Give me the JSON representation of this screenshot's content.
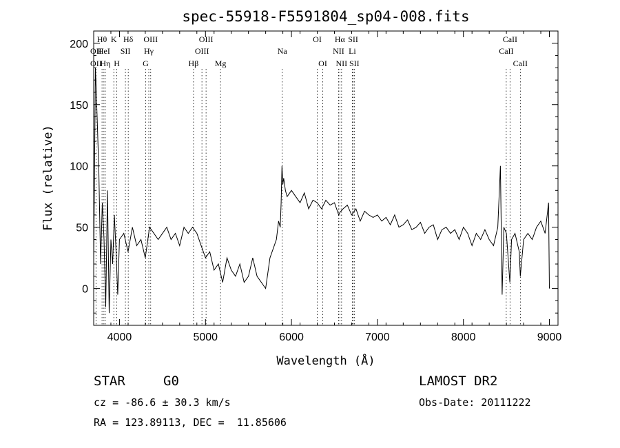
{
  "chart_data": {
    "type": "line",
    "title": "spec-55918-F5591804_sp04-008.fits",
    "xlabel": "Wavelength (Å)",
    "ylabel": "Flux (relative)",
    "xlim": [
      3700,
      9100
    ],
    "ylim": [
      -30,
      210
    ],
    "x_ticks": [
      4000,
      5000,
      6000,
      7000,
      8000,
      9000
    ],
    "y_ticks": [
      0,
      50,
      100,
      150,
      200
    ],
    "grid": false,
    "legend": "none",
    "series": [
      {
        "color": "#000000",
        "x": [
          3700,
          3720,
          3740,
          3760,
          3780,
          3800,
          3820,
          3840,
          3860,
          3880,
          3900,
          3920,
          3940,
          3960,
          3980,
          4000,
          4050,
          4100,
          4150,
          4200,
          4250,
          4300,
          4350,
          4400,
          4450,
          4500,
          4550,
          4600,
          4650,
          4700,
          4750,
          4800,
          4850,
          4900,
          4950,
          5000,
          5050,
          5100,
          5150,
          5200,
          5250,
          5300,
          5350,
          5400,
          5450,
          5500,
          5550,
          5600,
          5650,
          5700,
          5750,
          5800,
          5825,
          5850,
          5870,
          5880,
          5890,
          5900,
          5910,
          5930,
          5950,
          6000,
          6050,
          6100,
          6150,
          6200,
          6250,
          6300,
          6350,
          6400,
          6450,
          6500,
          6550,
          6563,
          6600,
          6650,
          6700,
          6750,
          6800,
          6850,
          6900,
          6950,
          7000,
          7050,
          7100,
          7150,
          7200,
          7250,
          7300,
          7350,
          7400,
          7450,
          7500,
          7550,
          7600,
          7650,
          7700,
          7750,
          7800,
          7850,
          7900,
          7950,
          8000,
          8050,
          8100,
          8150,
          8200,
          8250,
          8300,
          8350,
          8400,
          8430,
          8450,
          8470,
          8500,
          8540,
          8560,
          8600,
          8650,
          8662,
          8700,
          8750,
          8800,
          8850,
          8900,
          8950,
          8990,
          9000
        ],
        "y": [
          20,
          180,
          140,
          95,
          20,
          70,
          40,
          -15,
          80,
          -20,
          40,
          20,
          60,
          30,
          -5,
          40,
          45,
          30,
          50,
          35,
          40,
          25,
          50,
          45,
          40,
          45,
          50,
          40,
          45,
          35,
          50,
          45,
          50,
          45,
          35,
          25,
          30,
          15,
          20,
          5,
          25,
          15,
          10,
          20,
          5,
          10,
          25,
          10,
          5,
          0,
          25,
          35,
          40,
          55,
          50,
          70,
          100,
          85,
          90,
          80,
          75,
          80,
          75,
          70,
          78,
          65,
          72,
          70,
          65,
          72,
          68,
          70,
          60,
          62,
          65,
          68,
          60,
          65,
          55,
          63,
          60,
          58,
          60,
          55,
          58,
          52,
          60,
          50,
          52,
          56,
          48,
          50,
          54,
          45,
          50,
          52,
          40,
          48,
          50,
          45,
          48,
          40,
          50,
          45,
          35,
          45,
          40,
          48,
          40,
          35,
          50,
          100,
          -5,
          50,
          45,
          5,
          40,
          45,
          30,
          10,
          40,
          45,
          40,
          50,
          55,
          45,
          70,
          0
        ]
      }
    ],
    "line_markers": [
      {
        "label": "OII",
        "x": 3727,
        "row": 1
      },
      {
        "label": "OII",
        "x": 3727,
        "row": 2
      },
      {
        "label": "Hθ",
        "x": 3797,
        "row": 0
      },
      {
        "label": "HeI",
        "x": 3819,
        "row": 1
      },
      {
        "label": "Hη",
        "x": 3835,
        "row": 2
      },
      {
        "label": "K",
        "x": 3934,
        "row": 0
      },
      {
        "label": "SII",
        "x": 4069,
        "row": 1
      },
      {
        "label": "H",
        "x": 3969,
        "row": 2
      },
      {
        "label": "Hδ",
        "x": 4102,
        "row": 0
      },
      {
        "label": "OIII",
        "x": 4363,
        "row": 0
      },
      {
        "label": "Hγ",
        "x": 4341,
        "row": 1
      },
      {
        "label": "G",
        "x": 4305,
        "row": 2
      },
      {
        "label": "Hβ",
        "x": 4861,
        "row": 2
      },
      {
        "label": "OIII",
        "x": 5007,
        "row": 0
      },
      {
        "label": "OIII",
        "x": 4959,
        "row": 1
      },
      {
        "label": "Mg",
        "x": 5175,
        "row": 2
      },
      {
        "label": "Na",
        "x": 5893,
        "row": 1
      },
      {
        "label": "OI",
        "x": 6300,
        "row": 0
      },
      {
        "label": "OI",
        "x": 6364,
        "row": 2
      },
      {
        "label": "Hα",
        "x": 6563,
        "row": 0
      },
      {
        "label": "SII",
        "x": 6717,
        "row": 0
      },
      {
        "label": "NII",
        "x": 6548,
        "row": 1
      },
      {
        "label": "Li",
        "x": 6708,
        "row": 1
      },
      {
        "label": "NII",
        "x": 6583,
        "row": 2
      },
      {
        "label": "SII",
        "x": 6731,
        "row": 2
      },
      {
        "label": "CaII",
        "x": 8542,
        "row": 0
      },
      {
        "label": "CaII",
        "x": 8498,
        "row": 1
      },
      {
        "label": "CaII",
        "x": 8662,
        "row": 2
      }
    ]
  },
  "info": {
    "object_class": "STAR",
    "subclass": "G0",
    "survey": "LAMOST DR2",
    "cz": "cz = -86.6 ± 30.3 km/s",
    "obs_date": "Obs-Date: 20111222",
    "coords": "RA = 123.89113, DEC =  11.85606"
  }
}
